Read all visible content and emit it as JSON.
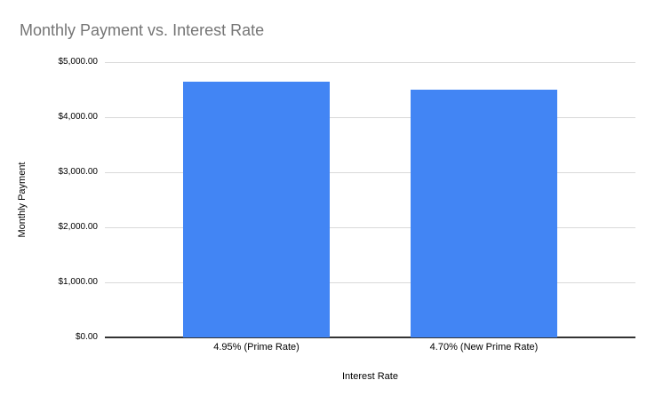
{
  "chart_data": {
    "type": "bar",
    "title": "Monthly Payment vs. Interest Rate",
    "xlabel": "Interest Rate",
    "ylabel": "Monthly Payment",
    "categories": [
      "4.95% (Prime Rate)",
      "4.70% (New Prime Rate)"
    ],
    "values": [
      4645,
      4500
    ],
    "ylim": [
      0,
      5000
    ],
    "y_ticks": [
      {
        "value": 0,
        "label": "$0.00"
      },
      {
        "value": 1000,
        "label": "$1,000.00"
      },
      {
        "value": 2000,
        "label": "$2,000.00"
      },
      {
        "value": 3000,
        "label": "$3,000.00"
      },
      {
        "value": 4000,
        "label": "$4,000.00"
      },
      {
        "value": 5000,
        "label": "$5,000.00"
      }
    ],
    "grid": true,
    "legend": "none",
    "colors": {
      "bar": "#4285f4",
      "title_text": "#757575",
      "axis_text": "#000000",
      "gridline": "#d9d9d9",
      "axis_line": "#333333",
      "background": "#ffffff"
    }
  }
}
